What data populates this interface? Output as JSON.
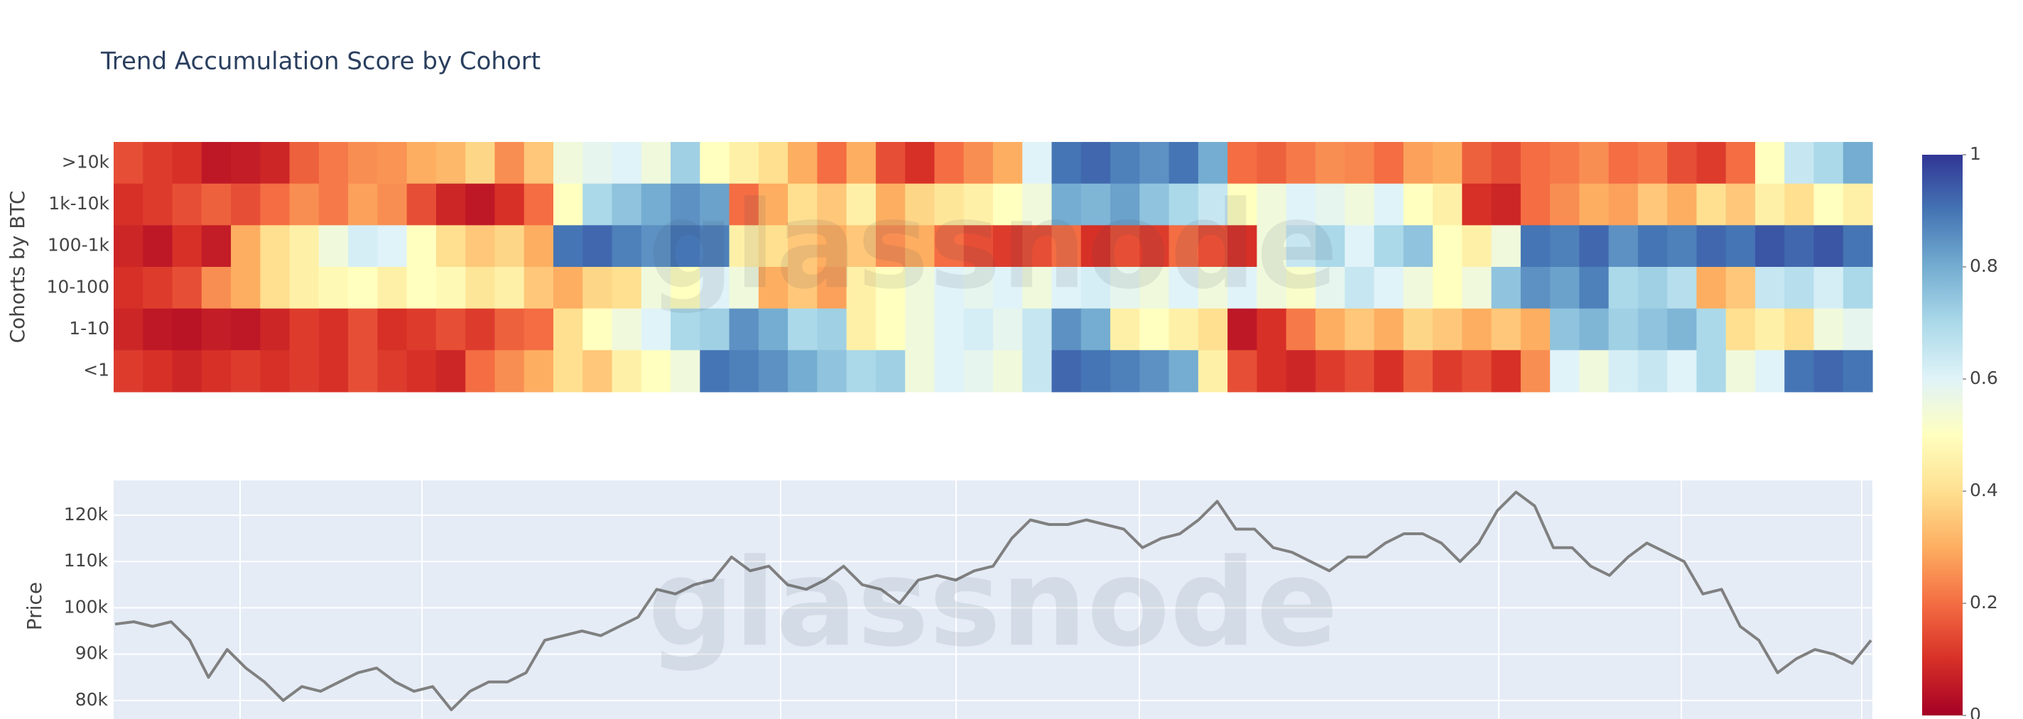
{
  "watermark": "glassnode",
  "chart_data": [
    {
      "type": "heatmap",
      "title": "Trend Accumulation Score by Cohort",
      "y_label": "Cohorts by BTC",
      "colorscale": [
        "#a50026",
        "#d73027",
        "#f46d43",
        "#fdae61",
        "#fee090",
        "#ffffbf",
        "#e0f3f8",
        "#abd9e9",
        "#74add1",
        "#4575b4",
        "#313695"
      ],
      "zlim": [
        0,
        1
      ],
      "zticks": [
        0,
        0.2,
        0.4,
        0.6,
        0.8,
        1
      ],
      "series": [
        {
          "name": ">10k",
          "values": [
            0.15,
            0.12,
            0.1,
            0.05,
            0.06,
            0.08,
            0.18,
            0.22,
            0.25,
            0.26,
            0.3,
            0.32,
            0.38,
            0.25,
            0.35,
            0.55,
            0.58,
            0.6,
            0.55,
            0.72,
            0.5,
            0.45,
            0.4,
            0.3,
            0.2,
            0.3,
            0.15,
            0.1,
            0.2,
            0.25,
            0.3,
            0.6,
            0.9,
            0.92,
            0.88,
            0.85,
            0.9,
            0.8,
            0.2,
            0.18,
            0.22,
            0.25,
            0.24,
            0.2,
            0.28,
            0.3,
            0.18,
            0.15,
            0.2,
            0.22,
            0.25,
            0.2,
            0.22,
            0.15,
            0.12,
            0.2,
            0.5,
            0.65,
            0.7,
            0.8
          ]
        },
        {
          "name": "1k-10k",
          "values": [
            0.1,
            0.12,
            0.15,
            0.18,
            0.15,
            0.2,
            0.25,
            0.22,
            0.28,
            0.25,
            0.15,
            0.08,
            0.05,
            0.1,
            0.2,
            0.5,
            0.7,
            0.75,
            0.8,
            0.85,
            0.82,
            0.2,
            0.3,
            0.4,
            0.35,
            0.45,
            0.3,
            0.38,
            0.42,
            0.45,
            0.5,
            0.55,
            0.8,
            0.78,
            0.82,
            0.75,
            0.7,
            0.65,
            0.5,
            0.55,
            0.6,
            0.58,
            0.55,
            0.6,
            0.5,
            0.45,
            0.1,
            0.08,
            0.2,
            0.25,
            0.3,
            0.28,
            0.35,
            0.3,
            0.4,
            0.35,
            0.45,
            0.4,
            0.5,
            0.45
          ]
        },
        {
          "name": "100-1k",
          "values": [
            0.08,
            0.05,
            0.1,
            0.06,
            0.3,
            0.4,
            0.45,
            0.55,
            0.62,
            0.6,
            0.5,
            0.4,
            0.35,
            0.38,
            0.3,
            0.9,
            0.92,
            0.88,
            0.85,
            0.9,
            0.88,
            0.45,
            0.4,
            0.35,
            0.3,
            0.35,
            0.25,
            0.3,
            0.2,
            0.15,
            0.12,
            0.15,
            0.2,
            0.1,
            0.15,
            0.12,
            0.2,
            0.15,
            0.1,
            0.55,
            0.65,
            0.7,
            0.6,
            0.7,
            0.75,
            0.5,
            0.45,
            0.55,
            0.9,
            0.88,
            0.92,
            0.85,
            0.9,
            0.88,
            0.92,
            0.9,
            0.95,
            0.92,
            0.95,
            0.9
          ]
        },
        {
          "name": "10-100",
          "values": [
            0.1,
            0.12,
            0.15,
            0.25,
            0.3,
            0.4,
            0.45,
            0.48,
            0.5,
            0.45,
            0.5,
            0.48,
            0.42,
            0.45,
            0.35,
            0.3,
            0.38,
            0.4,
            0.55,
            0.5,
            0.6,
            0.55,
            0.3,
            0.35,
            0.28,
            0.45,
            0.5,
            0.55,
            0.6,
            0.58,
            0.6,
            0.55,
            0.6,
            0.62,
            0.58,
            0.55,
            0.6,
            0.55,
            0.6,
            0.55,
            0.52,
            0.58,
            0.65,
            0.6,
            0.55,
            0.5,
            0.55,
            0.75,
            0.85,
            0.82,
            0.88,
            0.7,
            0.72,
            0.68,
            0.3,
            0.35,
            0.65,
            0.68,
            0.62,
            0.7
          ]
        },
        {
          "name": "1-10",
          "values": [
            0.08,
            0.05,
            0.04,
            0.06,
            0.05,
            0.08,
            0.12,
            0.1,
            0.15,
            0.1,
            0.12,
            0.15,
            0.12,
            0.18,
            0.2,
            0.4,
            0.5,
            0.55,
            0.6,
            0.7,
            0.72,
            0.85,
            0.8,
            0.7,
            0.72,
            0.45,
            0.5,
            0.55,
            0.6,
            0.62,
            0.58,
            0.65,
            0.85,
            0.8,
            0.45,
            0.5,
            0.45,
            0.4,
            0.05,
            0.1,
            0.22,
            0.3,
            0.35,
            0.3,
            0.38,
            0.35,
            0.3,
            0.35,
            0.3,
            0.75,
            0.78,
            0.72,
            0.75,
            0.78,
            0.7,
            0.4,
            0.45,
            0.4,
            0.55,
            0.58
          ]
        },
        {
          "name": "<1",
          "values": [
            0.12,
            0.1,
            0.08,
            0.1,
            0.12,
            0.1,
            0.12,
            0.1,
            0.15,
            0.12,
            0.1,
            0.08,
            0.2,
            0.25,
            0.3,
            0.4,
            0.35,
            0.45,
            0.5,
            0.55,
            0.9,
            0.88,
            0.85,
            0.8,
            0.75,
            0.7,
            0.72,
            0.55,
            0.6,
            0.58,
            0.55,
            0.65,
            0.92,
            0.9,
            0.88,
            0.85,
            0.8,
            0.45,
            0.15,
            0.1,
            0.08,
            0.12,
            0.15,
            0.1,
            0.18,
            0.12,
            0.15,
            0.1,
            0.25,
            0.6,
            0.55,
            0.62,
            0.65,
            0.6,
            0.7,
            0.55,
            0.6,
            0.9,
            0.92,
            0.9
          ]
        }
      ]
    },
    {
      "type": "line",
      "y_label": "Price",
      "color": "#808080",
      "grid": true,
      "ylim": [
        76000,
        127500
      ],
      "yticks": [
        {
          "value": 80000,
          "label": "80k"
        },
        {
          "value": 90000,
          "label": "90k"
        },
        {
          "value": 100000,
          "label": "100k"
        },
        {
          "value": 110000,
          "label": "110k"
        },
        {
          "value": 120000,
          "label": "120k"
        }
      ],
      "values": [
        96500,
        97000,
        96000,
        97000,
        93000,
        85000,
        91000,
        87000,
        84000,
        80000,
        83000,
        82000,
        84000,
        86000,
        87000,
        84000,
        82000,
        83000,
        78000,
        82000,
        84000,
        84000,
        86000,
        93000,
        94000,
        95000,
        94000,
        96000,
        98000,
        104000,
        103000,
        105000,
        106000,
        111000,
        108000,
        109000,
        105000,
        104000,
        106000,
        109000,
        105000,
        104000,
        101000,
        106000,
        107000,
        106000,
        108000,
        109000,
        115000,
        119000,
        118000,
        118000,
        119000,
        118000,
        117000,
        113000,
        115000,
        116000,
        119000,
        123000,
        117000,
        117000,
        113000,
        112000,
        110000,
        108000,
        111000,
        111000,
        114000,
        116000,
        116000,
        114000,
        110000,
        114000,
        121000,
        125000,
        122000,
        113000,
        113000,
        109000,
        107000,
        111000,
        114000,
        112000,
        110000,
        103000,
        104000,
        96000,
        93000,
        86000,
        89000,
        91000,
        90000,
        88000,
        93000
      ]
    }
  ]
}
